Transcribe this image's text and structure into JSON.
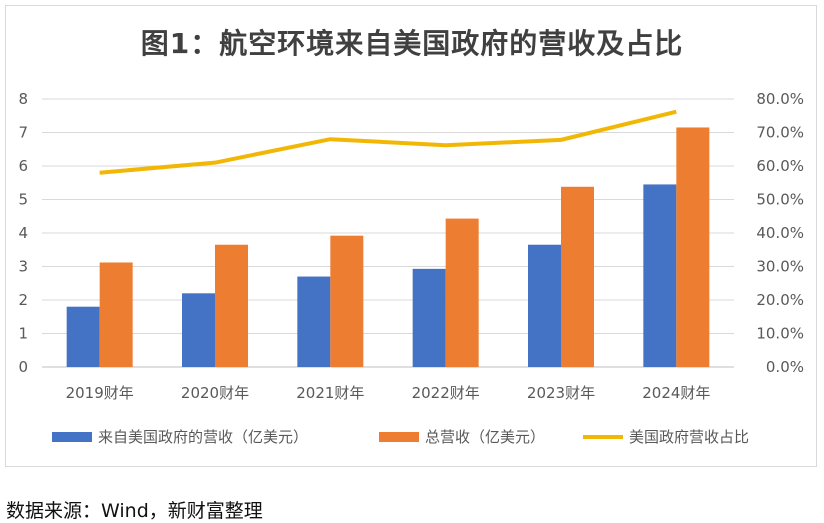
{
  "chart_data": {
    "type": "bar",
    "title": "图1：航空环境来自美国政府的营收及占比",
    "categories": [
      "2019财年",
      "2020财年",
      "2021财年",
      "2022财年",
      "2023财年",
      "2024财年"
    ],
    "series": [
      {
        "name": "来自美国政府的营收（亿美元）",
        "type": "bar",
        "axis": "left",
        "color": "#4472c4",
        "values": [
          1.8,
          2.2,
          2.7,
          2.93,
          3.65,
          5.45
        ]
      },
      {
        "name": "总营收（亿美元）",
        "type": "bar",
        "axis": "left",
        "color": "#ed7d31",
        "values": [
          3.12,
          3.65,
          3.92,
          4.43,
          5.38,
          7.15
        ]
      },
      {
        "name": "美国政府营收占比",
        "type": "line",
        "axis": "right",
        "color": "#f2b705",
        "values": [
          0.58,
          0.61,
          0.68,
          0.662,
          0.678,
          0.762
        ]
      }
    ],
    "y_left": {
      "ylim": [
        0,
        8
      ],
      "ticks": [
        "0",
        "1",
        "2",
        "3",
        "4",
        "5",
        "6",
        "7",
        "8"
      ]
    },
    "y_right": {
      "ylim": [
        0,
        0.8
      ],
      "ticks": [
        "0.0%",
        "10.0%",
        "20.0%",
        "30.0%",
        "40.0%",
        "50.0%",
        "60.0%",
        "70.0%",
        "80.0%"
      ]
    },
    "grid": true,
    "legend": "bottom"
  },
  "source_note": "数据来源：Wind，新财富整理"
}
